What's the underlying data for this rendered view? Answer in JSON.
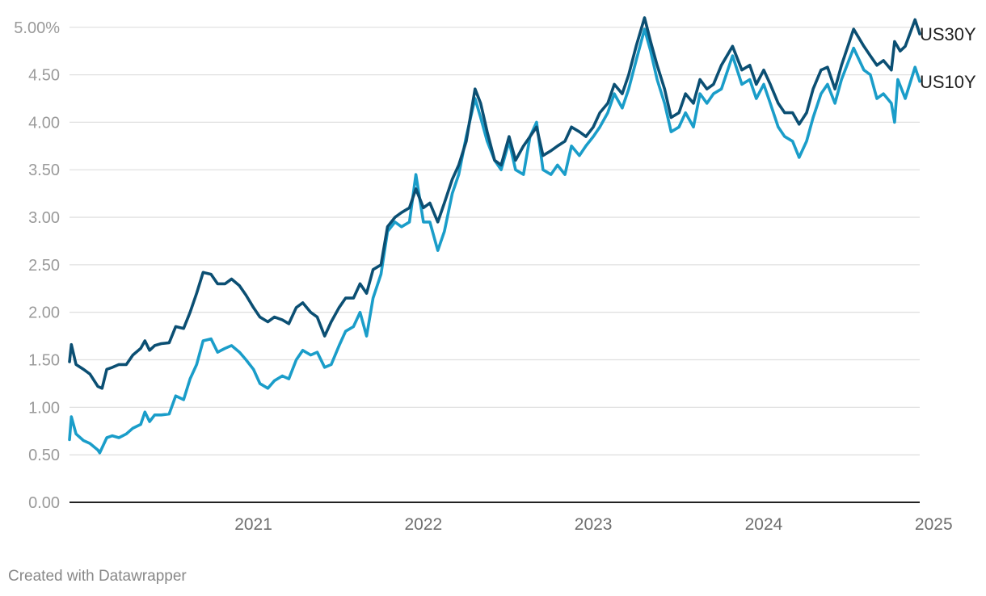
{
  "chart_data": {
    "type": "line",
    "y_ticks": [
      "0.00",
      "0.50",
      "1.00",
      "1.50",
      "2.00",
      "2.50",
      "3.00",
      "3.50",
      "4.00",
      "4.50",
      "5.00%"
    ],
    "y_tick_values": [
      0,
      0.5,
      1,
      1.5,
      2,
      2.5,
      3,
      3.5,
      4,
      4.5,
      5
    ],
    "x_ticks": [
      "2021",
      "2022",
      "2023",
      "2024",
      "2025"
    ],
    "x_tick_values": [
      "2021-07-01",
      "2022-07-01",
      "2023-07-01",
      "2024-07-01",
      "2025-07-01"
    ],
    "xlim": [
      "2020-06-01",
      "2025-06-01"
    ],
    "ylim": [
      0,
      5.1
    ],
    "grid": true,
    "series": [
      {
        "name": "US30Y",
        "color": "#0b4f73",
        "points": [
          [
            "2020-06-01",
            1.48
          ],
          [
            "2020-06-05",
            1.66
          ],
          [
            "2020-06-15",
            1.45
          ],
          [
            "2020-07-01",
            1.4
          ],
          [
            "2020-07-15",
            1.35
          ],
          [
            "2020-08-01",
            1.22
          ],
          [
            "2020-08-10",
            1.2
          ],
          [
            "2020-08-20",
            1.4
          ],
          [
            "2020-09-01",
            1.42
          ],
          [
            "2020-09-15",
            1.45
          ],
          [
            "2020-10-01",
            1.45
          ],
          [
            "2020-10-15",
            1.55
          ],
          [
            "2020-11-01",
            1.62
          ],
          [
            "2020-11-10",
            1.7
          ],
          [
            "2020-11-20",
            1.6
          ],
          [
            "2020-12-01",
            1.65
          ],
          [
            "2020-12-15",
            1.67
          ],
          [
            "2021-01-01",
            1.68
          ],
          [
            "2021-01-15",
            1.85
          ],
          [
            "2021-02-01",
            1.83
          ],
          [
            "2021-02-15",
            2.0
          ],
          [
            "2021-03-01",
            2.2
          ],
          [
            "2021-03-15",
            2.42
          ],
          [
            "2021-04-01",
            2.4
          ],
          [
            "2021-04-15",
            2.3
          ],
          [
            "2021-05-01",
            2.3
          ],
          [
            "2021-05-15",
            2.35
          ],
          [
            "2021-06-01",
            2.28
          ],
          [
            "2021-06-15",
            2.18
          ],
          [
            "2021-07-01",
            2.05
          ],
          [
            "2021-07-15",
            1.95
          ],
          [
            "2021-08-01",
            1.9
          ],
          [
            "2021-08-15",
            1.95
          ],
          [
            "2021-09-01",
            1.92
          ],
          [
            "2021-09-15",
            1.88
          ],
          [
            "2021-10-01",
            2.05
          ],
          [
            "2021-10-15",
            2.1
          ],
          [
            "2021-11-01",
            2.0
          ],
          [
            "2021-11-15",
            1.95
          ],
          [
            "2021-12-01",
            1.75
          ],
          [
            "2021-12-15",
            1.9
          ],
          [
            "2022-01-01",
            2.05
          ],
          [
            "2022-01-15",
            2.15
          ],
          [
            "2022-02-01",
            2.15
          ],
          [
            "2022-02-15",
            2.3
          ],
          [
            "2022-03-01",
            2.2
          ],
          [
            "2022-03-15",
            2.45
          ],
          [
            "2022-04-01",
            2.5
          ],
          [
            "2022-04-15",
            2.9
          ],
          [
            "2022-05-01",
            3.0
          ],
          [
            "2022-05-15",
            3.05
          ],
          [
            "2022-06-01",
            3.1
          ],
          [
            "2022-06-15",
            3.3
          ],
          [
            "2022-07-01",
            3.1
          ],
          [
            "2022-07-15",
            3.15
          ],
          [
            "2022-08-01",
            2.95
          ],
          [
            "2022-08-15",
            3.15
          ],
          [
            "2022-09-01",
            3.4
          ],
          [
            "2022-09-15",
            3.55
          ],
          [
            "2022-10-01",
            3.8
          ],
          [
            "2022-10-20",
            4.35
          ],
          [
            "2022-11-01",
            4.2
          ],
          [
            "2022-11-15",
            3.9
          ],
          [
            "2022-12-01",
            3.6
          ],
          [
            "2022-12-15",
            3.55
          ],
          [
            "2023-01-01",
            3.85
          ],
          [
            "2023-01-15",
            3.6
          ],
          [
            "2023-02-01",
            3.75
          ],
          [
            "2023-02-15",
            3.85
          ],
          [
            "2023-03-01",
            3.95
          ],
          [
            "2023-03-15",
            3.65
          ],
          [
            "2023-04-01",
            3.7
          ],
          [
            "2023-04-15",
            3.75
          ],
          [
            "2023-05-01",
            3.8
          ],
          [
            "2023-05-15",
            3.95
          ],
          [
            "2023-06-01",
            3.9
          ],
          [
            "2023-06-15",
            3.85
          ],
          [
            "2023-07-01",
            3.95
          ],
          [
            "2023-07-15",
            4.1
          ],
          [
            "2023-08-01",
            4.2
          ],
          [
            "2023-08-15",
            4.4
          ],
          [
            "2023-09-01",
            4.3
          ],
          [
            "2023-09-15",
            4.5
          ],
          [
            "2023-10-01",
            4.8
          ],
          [
            "2023-10-19",
            5.1
          ],
          [
            "2023-11-01",
            4.85
          ],
          [
            "2023-11-15",
            4.6
          ],
          [
            "2023-12-01",
            4.35
          ],
          [
            "2023-12-15",
            4.05
          ],
          [
            "2024-01-01",
            4.1
          ],
          [
            "2024-01-15",
            4.3
          ],
          [
            "2024-02-01",
            4.2
          ],
          [
            "2024-02-15",
            4.45
          ],
          [
            "2024-03-01",
            4.35
          ],
          [
            "2024-03-15",
            4.4
          ],
          [
            "2024-04-01",
            4.6
          ],
          [
            "2024-04-25",
            4.8
          ],
          [
            "2024-05-15",
            4.55
          ],
          [
            "2024-06-01",
            4.6
          ],
          [
            "2024-06-15",
            4.4
          ],
          [
            "2024-07-01",
            4.55
          ],
          [
            "2024-07-15",
            4.4
          ],
          [
            "2024-08-01",
            4.2
          ],
          [
            "2024-08-15",
            4.1
          ],
          [
            "2024-09-01",
            4.1
          ],
          [
            "2024-09-15",
            3.98
          ],
          [
            "2024-10-01",
            4.1
          ],
          [
            "2024-10-15",
            4.35
          ],
          [
            "2024-11-01",
            4.55
          ],
          [
            "2024-11-15",
            4.58
          ],
          [
            "2024-12-01",
            4.35
          ],
          [
            "2024-12-15",
            4.6
          ],
          [
            "2025-01-10",
            4.98
          ],
          [
            "2025-02-01",
            4.8
          ],
          [
            "2025-02-15",
            4.7
          ],
          [
            "2025-03-01",
            4.6
          ],
          [
            "2025-03-15",
            4.65
          ],
          [
            "2025-04-01",
            4.55
          ],
          [
            "2025-04-08",
            4.85
          ],
          [
            "2025-04-20",
            4.75
          ],
          [
            "2025-05-01",
            4.8
          ],
          [
            "2025-05-22",
            5.08
          ],
          [
            "2025-06-01",
            4.93
          ]
        ]
      },
      {
        "name": "US10Y",
        "color": "#1a9dc9",
        "points": [
          [
            "2020-06-01",
            0.66
          ],
          [
            "2020-06-05",
            0.9
          ],
          [
            "2020-06-15",
            0.72
          ],
          [
            "2020-07-01",
            0.65
          ],
          [
            "2020-07-15",
            0.62
          ],
          [
            "2020-08-01",
            0.55
          ],
          [
            "2020-08-05",
            0.52
          ],
          [
            "2020-08-20",
            0.68
          ],
          [
            "2020-09-01",
            0.7
          ],
          [
            "2020-09-15",
            0.68
          ],
          [
            "2020-10-01",
            0.72
          ],
          [
            "2020-10-15",
            0.78
          ],
          [
            "2020-11-01",
            0.82
          ],
          [
            "2020-11-10",
            0.95
          ],
          [
            "2020-11-20",
            0.85
          ],
          [
            "2020-12-01",
            0.92
          ],
          [
            "2020-12-15",
            0.92
          ],
          [
            "2021-01-01",
            0.93
          ],
          [
            "2021-01-15",
            1.12
          ],
          [
            "2021-02-01",
            1.08
          ],
          [
            "2021-02-15",
            1.3
          ],
          [
            "2021-03-01",
            1.45
          ],
          [
            "2021-03-15",
            1.7
          ],
          [
            "2021-04-01",
            1.72
          ],
          [
            "2021-04-15",
            1.58
          ],
          [
            "2021-05-01",
            1.62
          ],
          [
            "2021-05-15",
            1.65
          ],
          [
            "2021-06-01",
            1.58
          ],
          [
            "2021-06-15",
            1.5
          ],
          [
            "2021-07-01",
            1.4
          ],
          [
            "2021-07-15",
            1.25
          ],
          [
            "2021-08-01",
            1.2
          ],
          [
            "2021-08-15",
            1.28
          ],
          [
            "2021-09-01",
            1.33
          ],
          [
            "2021-09-15",
            1.3
          ],
          [
            "2021-10-01",
            1.5
          ],
          [
            "2021-10-15",
            1.6
          ],
          [
            "2021-11-01",
            1.55
          ],
          [
            "2021-11-15",
            1.58
          ],
          [
            "2021-12-01",
            1.42
          ],
          [
            "2021-12-15",
            1.45
          ],
          [
            "2022-01-01",
            1.65
          ],
          [
            "2022-01-15",
            1.8
          ],
          [
            "2022-02-01",
            1.85
          ],
          [
            "2022-02-15",
            2.0
          ],
          [
            "2022-03-01",
            1.75
          ],
          [
            "2022-03-15",
            2.15
          ],
          [
            "2022-04-01",
            2.4
          ],
          [
            "2022-04-15",
            2.85
          ],
          [
            "2022-05-01",
            2.95
          ],
          [
            "2022-05-15",
            2.9
          ],
          [
            "2022-06-01",
            2.95
          ],
          [
            "2022-06-15",
            3.45
          ],
          [
            "2022-07-01",
            2.95
          ],
          [
            "2022-07-15",
            2.95
          ],
          [
            "2022-08-01",
            2.65
          ],
          [
            "2022-08-15",
            2.85
          ],
          [
            "2022-09-01",
            3.25
          ],
          [
            "2022-09-15",
            3.45
          ],
          [
            "2022-10-01",
            3.85
          ],
          [
            "2022-10-20",
            4.25
          ],
          [
            "2022-11-01",
            4.05
          ],
          [
            "2022-11-15",
            3.8
          ],
          [
            "2022-12-01",
            3.6
          ],
          [
            "2022-12-15",
            3.5
          ],
          [
            "2023-01-01",
            3.8
          ],
          [
            "2023-01-15",
            3.5
          ],
          [
            "2023-02-01",
            3.45
          ],
          [
            "2023-02-15",
            3.85
          ],
          [
            "2023-03-01",
            4.0
          ],
          [
            "2023-03-15",
            3.5
          ],
          [
            "2023-04-01",
            3.45
          ],
          [
            "2023-04-15",
            3.55
          ],
          [
            "2023-05-01",
            3.45
          ],
          [
            "2023-05-15",
            3.75
          ],
          [
            "2023-06-01",
            3.65
          ],
          [
            "2023-06-15",
            3.75
          ],
          [
            "2023-07-01",
            3.85
          ],
          [
            "2023-07-15",
            3.95
          ],
          [
            "2023-08-01",
            4.1
          ],
          [
            "2023-08-15",
            4.3
          ],
          [
            "2023-09-01",
            4.15
          ],
          [
            "2023-09-15",
            4.35
          ],
          [
            "2023-10-01",
            4.65
          ],
          [
            "2023-10-19",
            4.98
          ],
          [
            "2023-11-01",
            4.75
          ],
          [
            "2023-11-15",
            4.45
          ],
          [
            "2023-12-01",
            4.2
          ],
          [
            "2023-12-15",
            3.9
          ],
          [
            "2024-01-01",
            3.95
          ],
          [
            "2024-01-15",
            4.1
          ],
          [
            "2024-02-01",
            3.95
          ],
          [
            "2024-02-15",
            4.3
          ],
          [
            "2024-03-01",
            4.2
          ],
          [
            "2024-03-15",
            4.3
          ],
          [
            "2024-04-01",
            4.35
          ],
          [
            "2024-04-25",
            4.7
          ],
          [
            "2024-05-15",
            4.4
          ],
          [
            "2024-06-01",
            4.45
          ],
          [
            "2024-06-15",
            4.25
          ],
          [
            "2024-07-01",
            4.4
          ],
          [
            "2024-07-15",
            4.2
          ],
          [
            "2024-08-01",
            3.95
          ],
          [
            "2024-08-15",
            3.85
          ],
          [
            "2024-09-01",
            3.8
          ],
          [
            "2024-09-15",
            3.63
          ],
          [
            "2024-10-01",
            3.8
          ],
          [
            "2024-10-15",
            4.05
          ],
          [
            "2024-11-01",
            4.3
          ],
          [
            "2024-11-15",
            4.4
          ],
          [
            "2024-12-01",
            4.2
          ],
          [
            "2024-12-15",
            4.45
          ],
          [
            "2025-01-10",
            4.78
          ],
          [
            "2025-02-01",
            4.55
          ],
          [
            "2025-02-15",
            4.5
          ],
          [
            "2025-03-01",
            4.25
          ],
          [
            "2025-03-15",
            4.3
          ],
          [
            "2025-04-01",
            4.2
          ],
          [
            "2025-04-08",
            4.0
          ],
          [
            "2025-04-15",
            4.45
          ],
          [
            "2025-05-01",
            4.25
          ],
          [
            "2025-05-22",
            4.58
          ],
          [
            "2025-06-01",
            4.43
          ]
        ]
      }
    ]
  },
  "footer": {
    "credit": "Created with Datawrapper"
  }
}
